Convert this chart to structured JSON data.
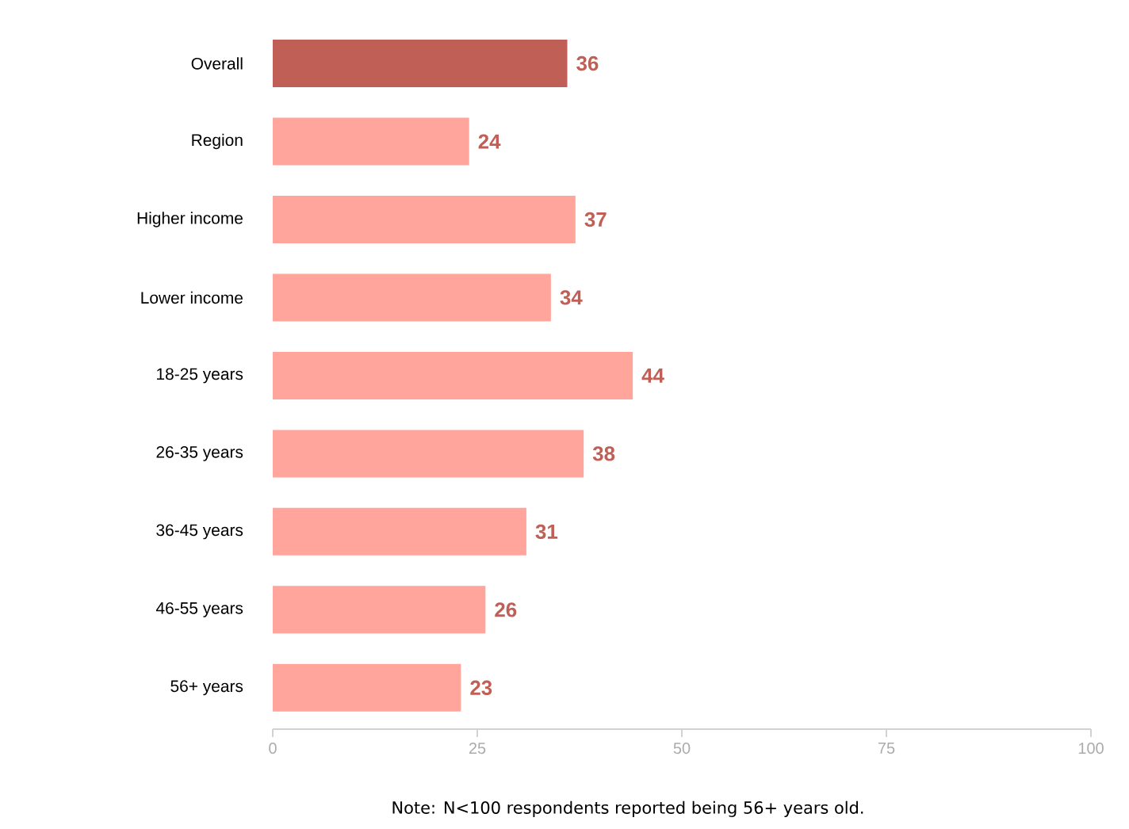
{
  "chart_data": {
    "type": "bar",
    "orientation": "horizontal",
    "categories": [
      "Overall",
      "Region",
      "Higher income",
      "Lower income",
      "18-25 years",
      "26-35 years",
      "36-45 years",
      "46-55 years",
      "56+ years"
    ],
    "values": [
      36,
      24,
      37,
      34,
      44,
      38,
      31,
      26,
      23
    ],
    "colors": [
      "#bf5f56",
      "#ffa59b",
      "#ffa59b",
      "#ffa59b",
      "#ffa59b",
      "#ffa59b",
      "#ffa59b",
      "#ffa59b",
      "#ffa59b"
    ],
    "xlim": [
      0,
      100
    ],
    "xticks": [
      0,
      25,
      50,
      75,
      100
    ],
    "data_labels": true,
    "annotations": [
      "Note: N<100 respondents reported being 56+ years old."
    ]
  }
}
